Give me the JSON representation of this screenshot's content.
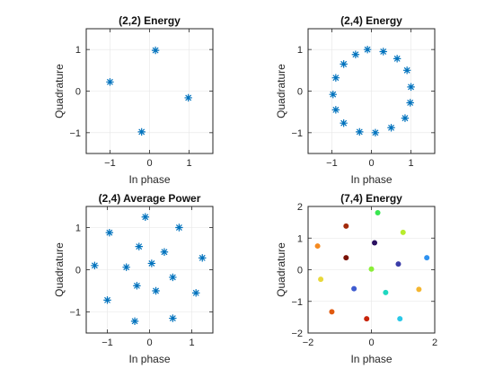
{
  "chart_data": [
    {
      "type": "scatter",
      "title": "(2,2) Energy",
      "xlabel": "In phase",
      "ylabel": "Quadrature",
      "xlim": [
        -1.6,
        1.6
      ],
      "ylim": [
        -1.5,
        1.5
      ],
      "xticks": [
        -1,
        0,
        1
      ],
      "yticks": [
        -1,
        0,
        1
      ],
      "grid": true,
      "marker": "star",
      "color": "#0072bd",
      "points": [
        {
          "x": 0.15,
          "y": 0.98
        },
        {
          "x": -1.0,
          "y": 0.22
        },
        {
          "x": 0.98,
          "y": -0.16
        },
        {
          "x": -0.2,
          "y": -0.98
        }
      ]
    },
    {
      "type": "scatter",
      "title": "(2,4) Energy",
      "xlabel": "In phase",
      "ylabel": "Quadrature",
      "xlim": [
        -1.6,
        1.6
      ],
      "ylim": [
        -1.5,
        1.5
      ],
      "xticks": [
        -1,
        0,
        1
      ],
      "yticks": [
        -1,
        0,
        1
      ],
      "grid": true,
      "marker": "star",
      "color": "#0072bd",
      "points": [
        {
          "x": -0.1,
          "y": 1.0
        },
        {
          "x": 0.3,
          "y": 0.95
        },
        {
          "x": -0.4,
          "y": 0.88
        },
        {
          "x": 0.65,
          "y": 0.78
        },
        {
          "x": -0.7,
          "y": 0.65
        },
        {
          "x": 0.9,
          "y": 0.5
        },
        {
          "x": -0.9,
          "y": 0.32
        },
        {
          "x": 1.0,
          "y": 0.1
        },
        {
          "x": -0.97,
          "y": -0.08
        },
        {
          "x": 0.98,
          "y": -0.28
        },
        {
          "x": -0.9,
          "y": -0.45
        },
        {
          "x": 0.85,
          "y": -0.65
        },
        {
          "x": -0.7,
          "y": -0.77
        },
        {
          "x": 0.5,
          "y": -0.88
        },
        {
          "x": -0.3,
          "y": -0.98
        },
        {
          "x": 0.1,
          "y": -1.0
        }
      ]
    },
    {
      "type": "scatter",
      "title": "(2,4) Average Power",
      "xlabel": "In phase",
      "ylabel": "Quadrature",
      "xlim": [
        -1.5,
        1.5
      ],
      "ylim": [
        -1.5,
        1.5
      ],
      "xticks": [
        -1,
        0,
        1
      ],
      "yticks": [
        -1,
        0,
        1
      ],
      "grid": true,
      "marker": "star",
      "color": "#0072bd",
      "points": [
        {
          "x": -0.1,
          "y": 1.25
        },
        {
          "x": -0.95,
          "y": 0.88
        },
        {
          "x": 0.7,
          "y": 1.0
        },
        {
          "x": -0.25,
          "y": 0.55
        },
        {
          "x": 0.35,
          "y": 0.42
        },
        {
          "x": -1.3,
          "y": 0.1
        },
        {
          "x": -0.55,
          "y": 0.06
        },
        {
          "x": 0.05,
          "y": 0.15
        },
        {
          "x": 1.25,
          "y": 0.28
        },
        {
          "x": 0.55,
          "y": -0.18
        },
        {
          "x": -0.3,
          "y": -0.38
        },
        {
          "x": 0.15,
          "y": -0.5
        },
        {
          "x": -1.0,
          "y": -0.72
        },
        {
          "x": 1.1,
          "y": -0.55
        },
        {
          "x": -0.35,
          "y": -1.22
        },
        {
          "x": 0.55,
          "y": -1.15
        }
      ]
    },
    {
      "type": "scatter",
      "title": "(7,4) Energy",
      "xlabel": "In phase",
      "ylabel": "Quadrature",
      "xlim": [
        -2,
        2
      ],
      "ylim": [
        -2,
        2
      ],
      "xticks": [
        -2,
        0,
        2
      ],
      "yticks": [
        -2,
        -1,
        0,
        1,
        2
      ],
      "grid": true,
      "marker": "dot",
      "points": [
        {
          "x": 0.2,
          "y": 1.8,
          "color": "#39e650"
        },
        {
          "x": -0.8,
          "y": 1.38,
          "color": "#a32a0a"
        },
        {
          "x": 1.0,
          "y": 1.18,
          "color": "#b8ec2c"
        },
        {
          "x": 0.1,
          "y": 0.85,
          "color": "#2a1060"
        },
        {
          "x": -1.7,
          "y": 0.75,
          "color": "#f58a20"
        },
        {
          "x": -0.8,
          "y": 0.38,
          "color": "#7a1206"
        },
        {
          "x": 1.75,
          "y": 0.38,
          "color": "#2f92f0"
        },
        {
          "x": 0.85,
          "y": 0.18,
          "color": "#3a3ca8"
        },
        {
          "x": 0.0,
          "y": 0.02,
          "color": "#8aee38"
        },
        {
          "x": -1.6,
          "y": -0.3,
          "color": "#e8d83a"
        },
        {
          "x": -0.55,
          "y": -0.6,
          "color": "#3f5cd0"
        },
        {
          "x": 0.45,
          "y": -0.72,
          "color": "#1fd8c0"
        },
        {
          "x": 1.5,
          "y": -0.62,
          "color": "#f4b630"
        },
        {
          "x": -1.25,
          "y": -1.33,
          "color": "#e05a10"
        },
        {
          "x": -0.15,
          "y": -1.55,
          "color": "#c8240a"
        },
        {
          "x": 0.9,
          "y": -1.55,
          "color": "#2ac8e8"
        }
      ]
    }
  ]
}
